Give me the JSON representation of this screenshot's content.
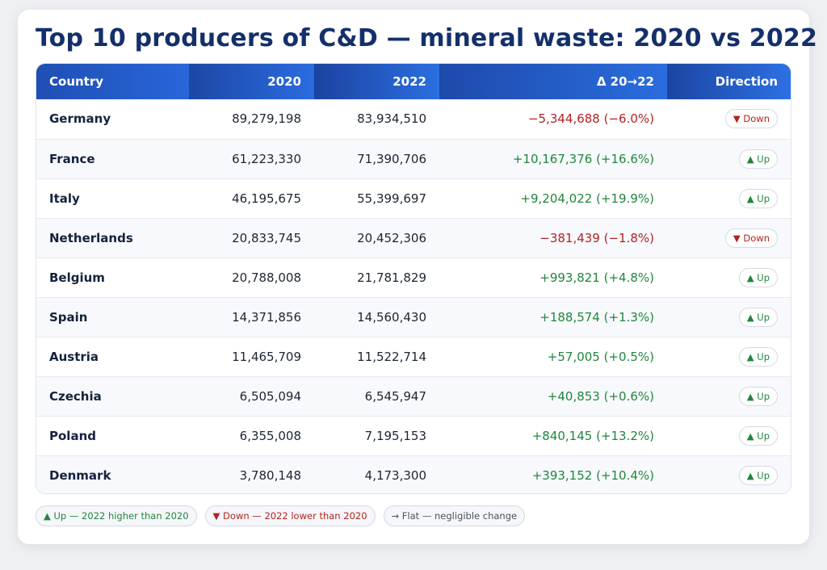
{
  "title": "Top 10 producers of C&D — mineral waste: 2020 vs 2022",
  "colors": {
    "header": "#2563d6",
    "up": "#21863d",
    "down": "#b32222",
    "title": "#14306b"
  },
  "chart_data": {
    "type": "table",
    "title": "Top 10 producers of C&D — mineral waste: 2020 vs 2022",
    "columns": [
      "Country",
      "2020",
      "2022",
      "Δ 20→22",
      "Direction"
    ],
    "rows": [
      {
        "country": "Germany",
        "v2020": "89,279,198",
        "v2022": "83,934,510",
        "delta": "−5,344,688 (−6.0%)",
        "trend": "down",
        "direction": "▼ Down"
      },
      {
        "country": "France",
        "v2020": "61,223,330",
        "v2022": "71,390,706",
        "delta": "+10,167,376 (+16.6%)",
        "trend": "up",
        "direction": "▲ Up"
      },
      {
        "country": "Italy",
        "v2020": "46,195,675",
        "v2022": "55,399,697",
        "delta": "+9,204,022 (+19.9%)",
        "trend": "up",
        "direction": "▲ Up"
      },
      {
        "country": "Netherlands",
        "v2020": "20,833,745",
        "v2022": "20,452,306",
        "delta": "−381,439 (−1.8%)",
        "trend": "down",
        "direction": "▼ Down"
      },
      {
        "country": "Belgium",
        "v2020": "20,788,008",
        "v2022": "21,781,829",
        "delta": "+993,821 (+4.8%)",
        "trend": "up",
        "direction": "▲ Up"
      },
      {
        "country": "Spain",
        "v2020": "14,371,856",
        "v2022": "14,560,430",
        "delta": "+188,574 (+1.3%)",
        "trend": "up",
        "direction": "▲ Up"
      },
      {
        "country": "Austria",
        "v2020": "11,465,709",
        "v2022": "11,522,714",
        "delta": "+57,005 (+0.5%)",
        "trend": "up",
        "direction": "▲ Up"
      },
      {
        "country": "Czechia",
        "v2020": "6,505,094",
        "v2022": "6,545,947",
        "delta": "+40,853 (+0.6%)",
        "trend": "up",
        "direction": "▲ Up"
      },
      {
        "country": "Poland",
        "v2020": "6,355,008",
        "v2022": "7,195,153",
        "delta": "+840,145 (+13.2%)",
        "trend": "up",
        "direction": "▲ Up"
      },
      {
        "country": "Denmark",
        "v2020": "3,780,148",
        "v2022": "4,173,300",
        "delta": "+393,152 (+10.4%)",
        "trend": "up",
        "direction": "▲ Up"
      }
    ]
  },
  "legend": [
    {
      "kind": "up",
      "text": "▲ Up — 2022 higher than 2020"
    },
    {
      "kind": "down",
      "text": "▼ Down — 2022 lower than 2020"
    },
    {
      "kind": "flat",
      "text": "→ Flat — negligible change"
    }
  ]
}
